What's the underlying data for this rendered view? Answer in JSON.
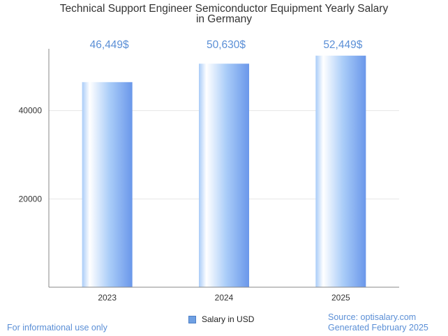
{
  "chart_data": {
    "type": "bar",
    "title": "Technical Support Engineer Semiconductor Equipment Yearly Salary in Germany",
    "title_lines": [
      "Technical Support Engineer Semiconductor Equipment Yearly Salary",
      "in Germany"
    ],
    "categories": [
      "2023",
      "2024",
      "2025"
    ],
    "series": [
      {
        "name": "Salary in USD",
        "values": [
          46449,
          50630,
          52449
        ],
        "labels": [
          "46,449$",
          "50,630$",
          "52,449$"
        ]
      }
    ],
    "y_ticks": [
      20000,
      40000
    ],
    "y_tick_labels": [
      "20000",
      "40000"
    ],
    "ylim": [
      0,
      54000
    ],
    "grid": true,
    "legend_position": "bottom-center",
    "colors": {
      "bar_light": "#ffffff",
      "bar_mid": "#a9ccf8",
      "bar_dark": "#6a97ea",
      "label": "#5b8fd6"
    }
  },
  "footer": {
    "left": "For informational use only",
    "source": "Source: optisalary.com",
    "generated": "Generated February 2025"
  }
}
